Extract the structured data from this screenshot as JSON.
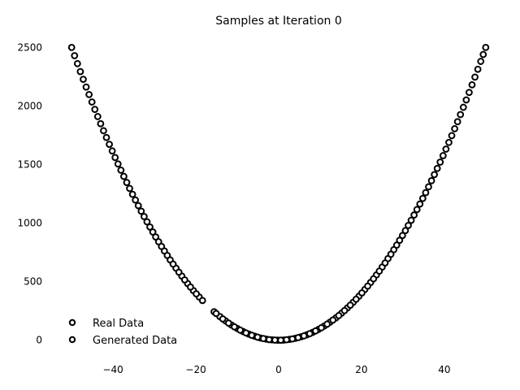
{
  "chart_data": {
    "type": "scatter",
    "title": "Samples at Iteration 0",
    "xlabel": "",
    "ylabel": "",
    "xlim": [
      -52,
      52
    ],
    "ylim": [
      -120,
      2600
    ],
    "x_ticks": [
      -40,
      -20,
      0,
      20,
      40
    ],
    "x_tick_labels": [
      "−40",
      "−20",
      "0",
      "20",
      "40"
    ],
    "y_ticks": [
      0,
      500,
      1000,
      1500,
      2000,
      2500
    ],
    "y_tick_labels": [
      "0",
      "500",
      "1000",
      "1500",
      "2000",
      "2500"
    ],
    "grid": false,
    "legend_position": "lower-left",
    "colors": {
      "real": "#000000",
      "generated": "#000000"
    },
    "series": [
      {
        "name": "Real Data",
        "relation": "y = x^2",
        "x": [
          -50,
          -48.6,
          -47.2,
          -45.8,
          -44.4,
          -43,
          -41.6,
          -40.2,
          -38.8,
          -37.4,
          -36,
          -34.6,
          -33.2,
          -31.8,
          -30.4,
          -29,
          -27.6,
          -26.2,
          -24.8,
          -23.4,
          -22,
          -20.6,
          -19.2,
          -18.4,
          -15.6,
          -14.2,
          -12.8,
          -11.4,
          -10,
          -8.6,
          -7.2,
          -5.8,
          -4.4,
          -3,
          -1.6,
          -0.2,
          1.2,
          2.6,
          4,
          5.4,
          6.8,
          8.2,
          9.6,
          11,
          12.4,
          13.8,
          15.2,
          16.6,
          18,
          19.4,
          20.8,
          22.2,
          23.6,
          25,
          26.4,
          27.8,
          29.2,
          30.6,
          32,
          33.4,
          34.8,
          36.2,
          37.6,
          39,
          40.4,
          41.8,
          43.2,
          44.6,
          46,
          47.4,
          48.8,
          50
        ],
        "y": [
          2500,
          2362,
          2228,
          2098,
          1971,
          1849,
          1731,
          1616,
          1505,
          1399,
          1296,
          1197,
          1102,
          1011,
          924,
          841,
          762,
          686,
          615,
          548,
          484,
          424,
          369,
          339,
          243,
          202,
          164,
          130,
          100,
          74,
          52,
          34,
          19,
          9,
          3,
          0,
          1,
          7,
          16,
          29,
          46,
          67,
          92,
          121,
          154,
          190,
          231,
          276,
          324,
          376,
          433,
          493,
          557,
          625,
          697,
          773,
          853,
          936,
          1024,
          1116,
          1211,
          1310,
          1414,
          1521,
          1632,
          1747,
          1866,
          1989,
          2116,
          2247,
          2381,
          2500
        ]
      },
      {
        "name": "Generated Data",
        "relation": "y = x^2",
        "x": [
          -49.3,
          -47.9,
          -46.5,
          -45.1,
          -43.7,
          -42.3,
          -40.9,
          -39.5,
          -38.1,
          -36.7,
          -35.3,
          -33.9,
          -32.5,
          -31.1,
          -29.7,
          -28.3,
          -26.9,
          -25.5,
          -24.1,
          -22.7,
          -21.3,
          -19.9,
          -15.1,
          -13.5,
          -12.1,
          -10.7,
          -9.3,
          -7.9,
          -6.5,
          -5.1,
          -3.7,
          -2.3,
          -0.9,
          0.5,
          1.9,
          3.3,
          4.7,
          6.1,
          7.5,
          8.9,
          10.3,
          11.7,
          13.1,
          14.5,
          15.9,
          17.3,
          18.7,
          20.1,
          21.5,
          22.9,
          24.3,
          25.7,
          27.1,
          28.5,
          29.9,
          31.3,
          32.7,
          34.1,
          35.5,
          36.9,
          38.3,
          39.7,
          41.1,
          42.5,
          43.9,
          45.3,
          46.7,
          48.1,
          49.4
        ],
        "y": [
          2430,
          2294,
          2162,
          2034,
          1910,
          1789,
          1673,
          1560,
          1452,
          1347,
          1246,
          1149,
          1056,
          967,
          882,
          801,
          724,
          650,
          581,
          515,
          454,
          396,
          228,
          182,
          146,
          114,
          86,
          62,
          42,
          26,
          14,
          5,
          1,
          0,
          4,
          11,
          22,
          37,
          56,
          79,
          106,
          137,
          172,
          210,
          253,
          299,
          350,
          404,
          462,
          524,
          590,
          660,
          734,
          812,
          894,
          980,
          1069,
          1163,
          1260,
          1362,
          1467,
          1576,
          1689,
          1806,
          1927,
          2052,
          2181,
          2314,
          2440
        ]
      }
    ]
  }
}
